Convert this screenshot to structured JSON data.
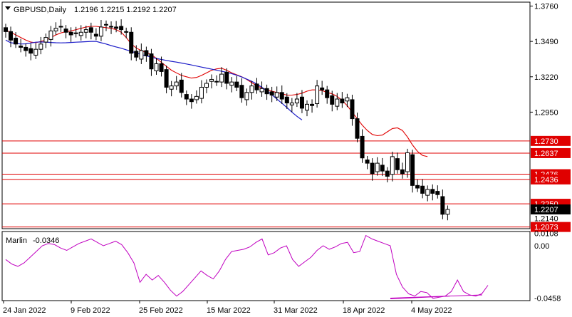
{
  "header": {
    "symbol": "GBPUSD,Daily",
    "ohlc": "1.2196 1.2215 1.2192 1.2207"
  },
  "indicator": {
    "name": "Marlin",
    "value_text": "-0.0346",
    "axis_labels": [
      "0.0108",
      "0.00",
      "-0.0458"
    ]
  },
  "colors": {
    "red_line": "#e00000",
    "blue_line": "#1c1cc8",
    "oscillator": "#c000c0",
    "price_box": "#e00000",
    "current_box": "#000000"
  },
  "chart_data": [
    {
      "type": "candlestick",
      "title": "GBPUSD,Daily",
      "x_ticks": [
        "24 Jan 2022",
        "9 Feb 2022",
        "25 Feb 2022",
        "15 Mar 2022",
        "31 Mar 2022",
        "18 Apr 2022",
        "4 May 2022"
      ],
      "y_ticks": [
        "1.3760",
        "1.3490",
        "1.3220",
        "1.2950"
      ],
      "ylim": [
        1.206,
        1.379
      ],
      "levels": [
        {
          "label": "1.2730",
          "value": 1.273
        },
        {
          "label": "1.2637",
          "value": 1.2637
        },
        {
          "label": "1.2476",
          "value": 1.2476
        },
        {
          "label": "1.2436",
          "value": 1.2436
        },
        {
          "label": "1.2250",
          "value": 1.225
        },
        {
          "label": "1.2073",
          "value": 1.2073
        }
      ],
      "current_price_label": "1.2207",
      "current_price": 1.2207,
      "extra_axis_label": "1.2140",
      "candles_close": [
        1.3565,
        1.35,
        1.347,
        1.3445,
        1.342,
        1.34,
        1.343,
        1.347,
        1.352,
        1.357,
        1.359,
        1.36,
        1.356,
        1.354,
        1.355,
        1.356,
        1.358,
        1.356,
        1.353,
        1.36,
        1.362,
        1.36,
        1.359,
        1.358,
        1.356,
        1.34,
        1.337,
        1.342,
        1.338,
        1.328,
        1.332,
        1.326,
        1.314,
        1.315,
        1.318,
        1.31,
        1.305,
        1.303,
        1.307,
        1.314,
        1.317,
        1.32,
        1.318,
        1.324,
        1.317,
        1.318,
        1.314,
        1.306,
        1.31,
        1.315,
        1.312,
        1.313,
        1.309,
        1.308,
        1.31,
        1.305,
        1.302,
        1.302,
        1.305,
        1.298,
        1.301,
        1.3,
        1.315,
        1.312,
        1.306,
        1.301,
        1.305,
        1.302,
        1.306,
        1.29,
        1.275,
        1.26,
        1.256,
        1.248,
        1.256,
        1.25,
        1.246,
        1.261,
        1.251,
        1.248,
        1.264,
        1.239,
        1.237,
        1.233,
        1.236,
        1.233,
        1.232,
        1.217,
        1.2207
      ],
      "red_ma": [
        1.3575,
        1.356,
        1.354,
        1.352,
        1.35,
        1.3485,
        1.348,
        1.349,
        1.35,
        1.352,
        1.354,
        1.3555,
        1.3565,
        1.357,
        1.358,
        1.359,
        1.36,
        1.3605,
        1.3605,
        1.36,
        1.3595,
        1.359,
        1.358,
        1.356,
        1.352,
        1.347,
        1.344,
        1.342,
        1.3405,
        1.339,
        1.336,
        1.333,
        1.33,
        1.327,
        1.325,
        1.323,
        1.322,
        1.321,
        1.3215,
        1.323,
        1.325,
        1.327,
        1.328,
        1.3285,
        1.327,
        1.325,
        1.3235,
        1.322,
        1.32,
        1.3175,
        1.315,
        1.3135,
        1.312,
        1.311,
        1.31,
        1.309,
        1.308,
        1.308,
        1.3085,
        1.3095,
        1.311,
        1.312,
        1.312,
        1.3115,
        1.31,
        1.309,
        1.307,
        1.304,
        1.3,
        1.295,
        1.29,
        1.285,
        1.281,
        1.278,
        1.277,
        1.2775,
        1.28,
        1.2825,
        1.283,
        1.281,
        1.276,
        1.27,
        1.265,
        1.262,
        1.261
      ],
      "blue_ma": [
        1.35,
        1.348,
        1.3475,
        1.347,
        1.3472,
        1.3478,
        1.3484,
        1.3486,
        1.3485,
        1.3482,
        1.348,
        1.3479,
        1.348,
        1.3482,
        1.3484,
        1.3486,
        1.3488,
        1.349,
        1.349,
        1.348,
        1.347,
        1.3458,
        1.3448,
        1.3438,
        1.3426,
        1.3414,
        1.3402,
        1.339,
        1.338,
        1.337,
        1.336,
        1.3352,
        1.3345,
        1.3338,
        1.3332,
        1.3325,
        1.3318,
        1.331,
        1.3302,
        1.3294,
        1.3286,
        1.3278,
        1.327,
        1.3262,
        1.3254,
        1.3244,
        1.3232,
        1.3218,
        1.3202,
        1.3185,
        1.3165,
        1.314,
        1.3112,
        1.3082,
        1.305,
        1.3018,
        1.2985,
        1.295,
        1.2918,
        1.289
      ]
    },
    {
      "type": "line",
      "title": "Marlin",
      "ylim": [
        -0.048,
        0.0125
      ],
      "yticks": [
        0.0108,
        0.0,
        -0.0458
      ],
      "values": [
        -0.012,
        -0.016,
        -0.018,
        -0.015,
        -0.01,
        -0.005,
        0.0,
        0.002,
        0.001,
        -0.002,
        -0.004,
        -0.001,
        0.002,
        0.004,
        0.006,
        0.003,
        0.0,
        0.002,
        0.004,
        0.001,
        -0.006,
        -0.015,
        -0.032,
        -0.025,
        -0.03,
        -0.026,
        -0.032,
        -0.039,
        -0.044,
        -0.04,
        -0.034,
        -0.028,
        -0.022,
        -0.026,
        -0.029,
        -0.022,
        -0.012,
        -0.005,
        -0.004,
        -0.003,
        -0.001,
        0.003,
        0.006,
        -0.008,
        -0.006,
        -0.002,
        0.0,
        -0.012,
        -0.018,
        -0.014,
        -0.01,
        -0.004,
        0.0,
        -0.003,
        -0.001,
        0.002,
        0.003,
        -0.006,
        -0.005,
        0.009,
        0.006,
        0.004,
        0.002,
        0.0,
        -0.025,
        -0.036,
        -0.042,
        -0.044,
        -0.04,
        -0.041,
        -0.046,
        -0.045,
        -0.044,
        -0.04,
        -0.03,
        -0.04,
        -0.043,
        -0.044,
        -0.042,
        -0.0346
      ],
      "trendline": [
        [
          -0.0458,
          -0.043
        ]
      ]
    }
  ]
}
